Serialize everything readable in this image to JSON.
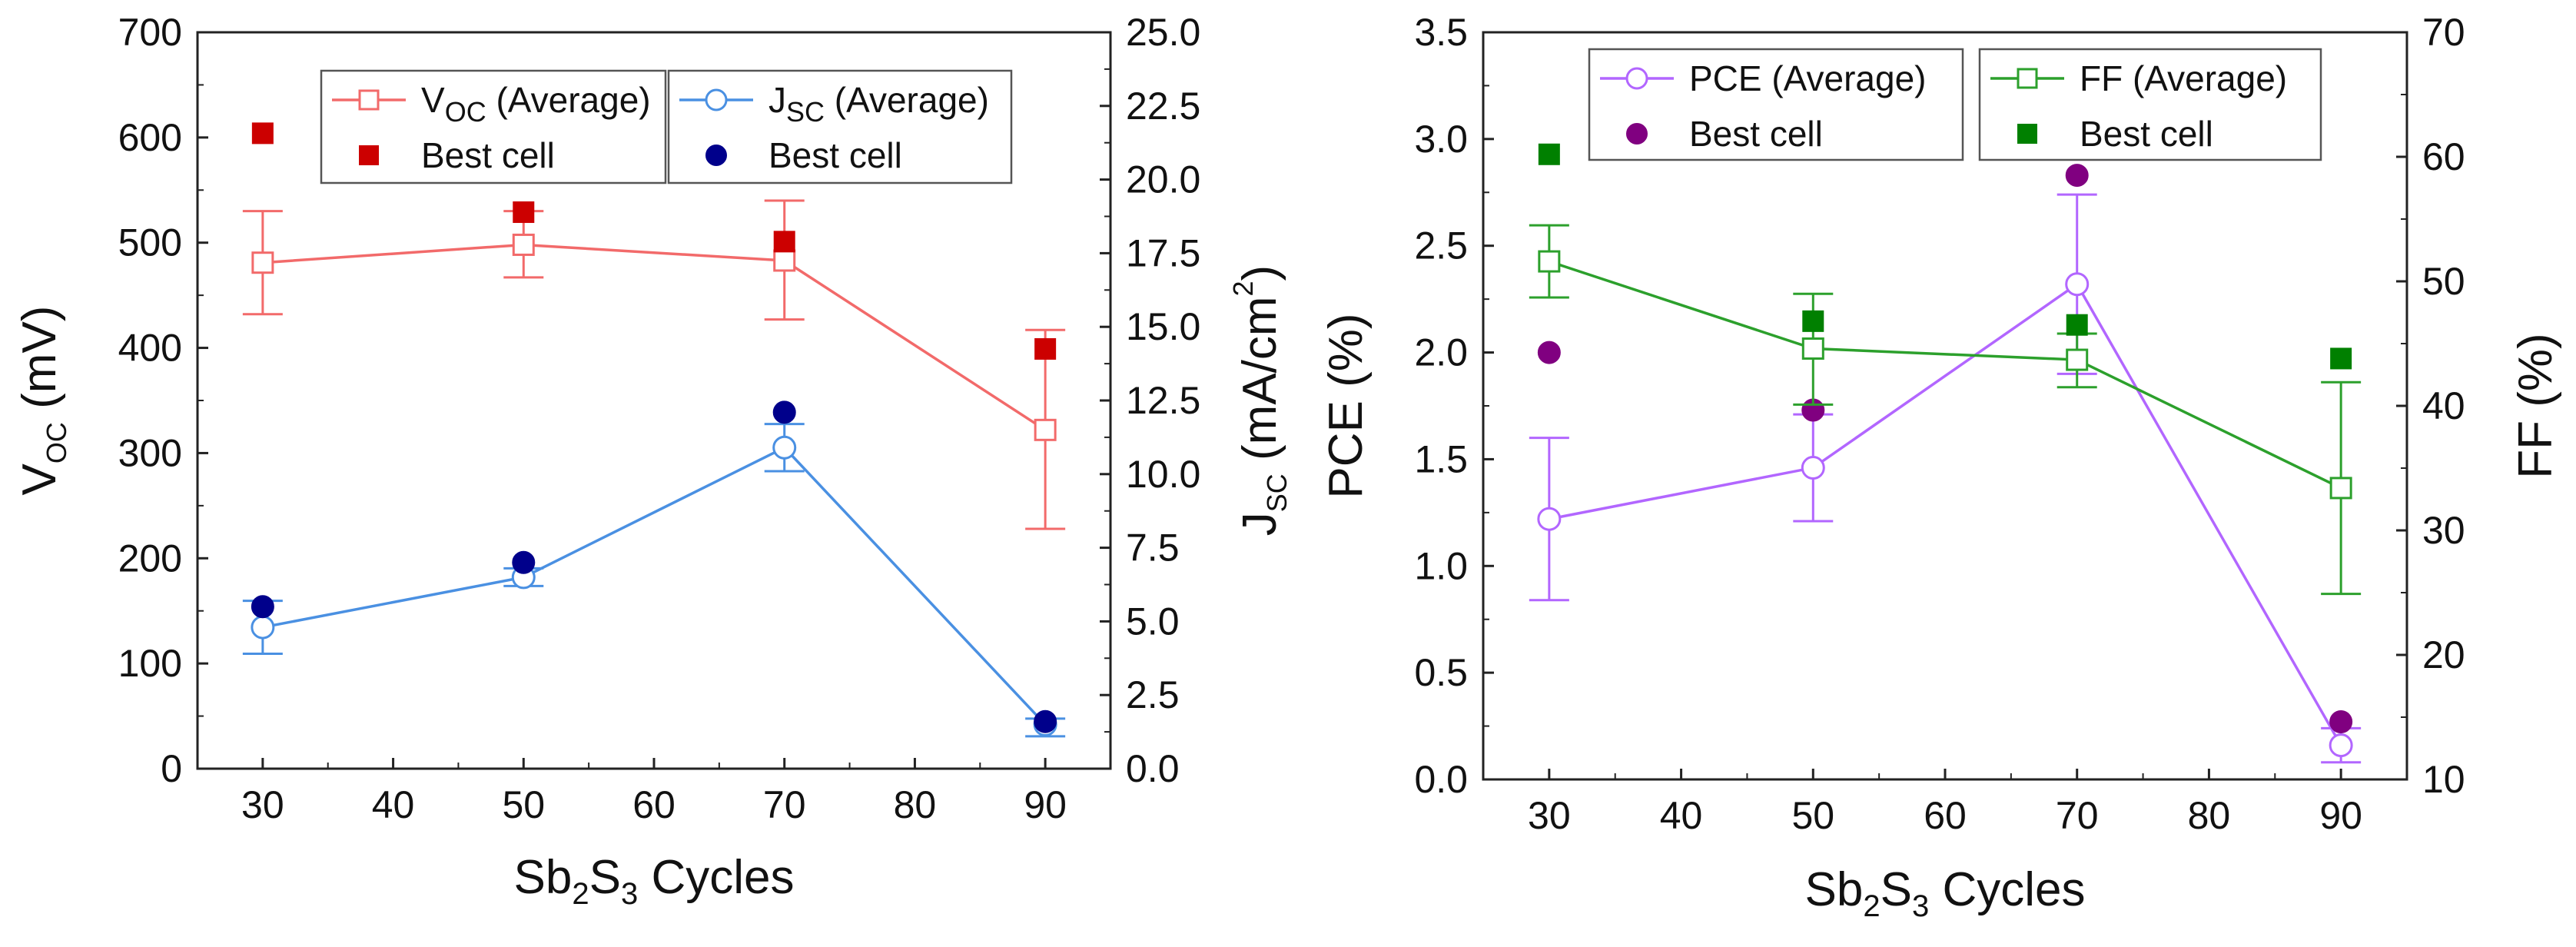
{
  "figure": {
    "panels": 2
  },
  "chart_data": [
    {
      "type": "line",
      "panel": "left",
      "x_label": {
        "main": "Sb",
        "sub1": "2",
        "mid": "S",
        "sub2": "3",
        "tail": " Cycles"
      },
      "y_label": {
        "main": "V",
        "sub": "OC",
        "tail": " (mV)"
      },
      "y2_label": {
        "main": "J",
        "sub": "SC",
        "tail": " (mA/cm",
        "sup": "2",
        "close": ")"
      },
      "xlim": [
        25,
        95
      ],
      "ylim": [
        0,
        700
      ],
      "y2lim": [
        0,
        25
      ],
      "x_ticks": [
        30,
        40,
        50,
        60,
        70,
        80,
        90
      ],
      "x_tick_labels": [
        "30",
        "40",
        "50",
        "60",
        "70",
        "80",
        "90"
      ],
      "y_ticks": [
        0,
        100,
        200,
        300,
        400,
        500,
        600,
        700
      ],
      "y_tick_labels": [
        "0",
        "100",
        "200",
        "300",
        "400",
        "500",
        "600",
        "700"
      ],
      "y2_ticks": [
        0,
        2.5,
        5,
        7.5,
        10,
        12.5,
        15,
        17.5,
        20,
        22.5,
        25
      ],
      "y2_tick_labels": [
        "0.0",
        "2.5",
        "5.0",
        "7.5",
        "10.0",
        "12.5",
        "15.0",
        "17.5",
        "20.0",
        "22.5",
        "25.0"
      ],
      "x": [
        30,
        50,
        70,
        90
      ],
      "series": [
        {
          "name": "Voc (Average)",
          "axis": "left",
          "marker": "open-square",
          "color": "#f26a6a",
          "values": [
            481,
            498,
            483,
            322
          ],
          "err_low": [
            432,
            467,
            427,
            228
          ],
          "err_high": [
            530,
            530,
            540,
            417
          ]
        },
        {
          "name": "Best cell",
          "axis": "left",
          "marker": "filled-square",
          "color": "#cc0000",
          "values": [
            604,
            529,
            501,
            399
          ]
        },
        {
          "name": "Jsc (Average)",
          "axis": "right",
          "marker": "open-circle",
          "color": "#4a90e2",
          "values": [
            4.8,
            6.5,
            10.9,
            1.5
          ],
          "err_low": [
            3.9,
            6.2,
            10.1,
            1.1
          ],
          "err_high": [
            5.7,
            6.8,
            11.7,
            1.7
          ]
        },
        {
          "name": "Best cell",
          "axis": "right",
          "marker": "filled-circle",
          "color": "#00008b",
          "values": [
            5.5,
            7.0,
            12.1,
            1.6
          ]
        }
      ],
      "legend": [
        {
          "label_main": "V",
          "label_sub": "OC",
          "label_tail": " (Average)",
          "series": 0
        },
        {
          "label_main": "Best cell",
          "label_sub": "",
          "label_tail": "",
          "series": 1
        },
        {
          "label_main": "J",
          "label_sub": "SC",
          "label_tail": " (Average)",
          "series": 2
        },
        {
          "label_main": "Best cell",
          "label_sub": "",
          "label_tail": "",
          "series": 3
        }
      ]
    },
    {
      "type": "line",
      "panel": "right",
      "x_label": {
        "main": "Sb",
        "sub1": "2",
        "mid": "S",
        "sub2": "3",
        "tail": " Cycles"
      },
      "y_label": {
        "main": "PCE (%)"
      },
      "y2_label": {
        "main": "FF (%)"
      },
      "xlim": [
        25,
        95
      ],
      "ylim": [
        0,
        3.5
      ],
      "y2lim": [
        10,
        70
      ],
      "x_ticks": [
        30,
        40,
        50,
        60,
        70,
        80,
        90
      ],
      "x_tick_labels": [
        "30",
        "40",
        "50",
        "60",
        "70",
        "80",
        "90"
      ],
      "y_ticks": [
        0,
        0.5,
        1,
        1.5,
        2,
        2.5,
        3,
        3.5
      ],
      "y_tick_labels": [
        "0.0",
        "0.5",
        "1.0",
        "1.5",
        "2.0",
        "2.5",
        "3.0",
        "3.5"
      ],
      "y2_ticks": [
        10,
        20,
        30,
        40,
        50,
        60,
        70
      ],
      "y2_tick_labels": [
        "10",
        "20",
        "30",
        "40",
        "50",
        "60",
        "70"
      ],
      "x": [
        30,
        50,
        70,
        90
      ],
      "series": [
        {
          "name": "PCE (Average)",
          "axis": "left",
          "marker": "open-circle",
          "color": "#b266ff",
          "values": [
            1.22,
            1.46,
            2.32,
            0.16
          ],
          "err_low": [
            0.84,
            1.21,
            1.9,
            0.08
          ],
          "err_high": [
            1.6,
            1.71,
            2.74,
            0.24
          ]
        },
        {
          "name": "Best cell",
          "axis": "left",
          "marker": "filled-circle",
          "color": "#800080",
          "values": [
            2.0,
            1.73,
            2.83,
            0.27
          ]
        },
        {
          "name": "FF (Average)",
          "axis": "right",
          "marker": "open-square",
          "color": "#2ca02c",
          "values": [
            51.6,
            44.6,
            43.7,
            33.4
          ],
          "err_low": [
            48.7,
            40.1,
            41.5,
            24.9
          ],
          "err_high": [
            54.5,
            49.0,
            45.8,
            41.9
          ]
        },
        {
          "name": "Best cell",
          "axis": "right",
          "marker": "filled-square",
          "color": "#008000",
          "values": [
            60.2,
            46.8,
            46.5,
            43.8
          ]
        }
      ],
      "legend": [
        {
          "label_main": "PCE (Average)",
          "label_sub": "",
          "label_tail": "",
          "series": 0
        },
        {
          "label_main": "Best cell",
          "label_sub": "",
          "label_tail": "",
          "series": 1
        },
        {
          "label_main": "FF (Average)",
          "label_sub": "",
          "label_tail": "",
          "series": 2
        },
        {
          "label_main": "Best cell",
          "label_sub": "",
          "label_tail": "",
          "series": 3
        }
      ]
    }
  ]
}
